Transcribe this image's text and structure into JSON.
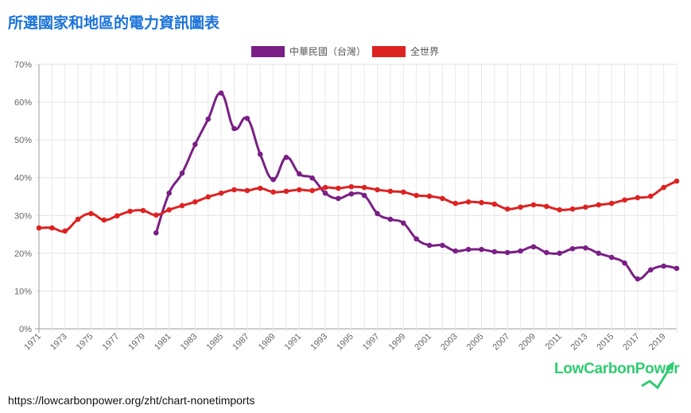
{
  "title": "所選國家和地區的電力資訊圖表",
  "url": "https://lowcarbonpower.org/zht/chart-nonetimports",
  "logo": "LowCarbonPower",
  "chart_data": {
    "type": "line",
    "title": "所選國家和地區的電力資訊圖表",
    "xlabel": "",
    "ylabel": "",
    "ylim": [
      0,
      70
    ],
    "yticks": [
      "0%",
      "10%",
      "20%",
      "30%",
      "40%",
      "50%",
      "60%",
      "70%"
    ],
    "x": [
      1971,
      1972,
      1973,
      1974,
      1975,
      1976,
      1977,
      1978,
      1979,
      1980,
      1981,
      1982,
      1983,
      1984,
      1985,
      1986,
      1987,
      1988,
      1989,
      1990,
      1991,
      1992,
      1993,
      1994,
      1995,
      1996,
      1997,
      1998,
      1999,
      2000,
      2001,
      2002,
      2003,
      2004,
      2005,
      2006,
      2007,
      2008,
      2009,
      2010,
      2011,
      2012,
      2013,
      2014,
      2015,
      2016,
      2017,
      2018,
      2019,
      2020
    ],
    "legend_position": "top-center",
    "grid": true,
    "series": [
      {
        "name": "中華民國（台灣）",
        "color": "#7a1f85",
        "values": [
          null,
          null,
          null,
          null,
          null,
          null,
          null,
          null,
          null,
          25.4,
          35.9,
          41.2,
          48.8,
          55.5,
          62.4,
          53.0,
          55.7,
          46.2,
          39.5,
          45.4,
          41.0,
          39.9,
          35.9,
          34.5,
          35.7,
          35.3,
          30.5,
          29.0,
          28.0,
          23.8,
          22.1,
          22.1,
          20.6,
          21.0,
          21.0,
          20.4,
          20.2,
          20.6,
          21.7,
          20.2,
          20.0,
          21.2,
          21.4,
          20.0,
          18.9,
          17.4,
          13.2,
          15.6,
          16.6,
          16.0
        ]
      },
      {
        "name": "全世界",
        "color": "#dd2222",
        "values": [
          26.7,
          26.7,
          25.9,
          29.0,
          30.5,
          28.8,
          29.9,
          31.1,
          31.3,
          30.1,
          31.5,
          32.6,
          33.6,
          34.9,
          35.9,
          36.8,
          36.6,
          37.2,
          36.2,
          36.4,
          36.8,
          36.6,
          37.4,
          37.2,
          37.6,
          37.4,
          36.8,
          36.4,
          36.2,
          35.3,
          35.1,
          34.5,
          33.2,
          33.6,
          33.4,
          33.0,
          31.7,
          32.2,
          32.8,
          32.4,
          31.5,
          31.7,
          32.2,
          32.8,
          33.2,
          34.1,
          34.7,
          35.1,
          37.4,
          39.1
        ]
      }
    ]
  }
}
